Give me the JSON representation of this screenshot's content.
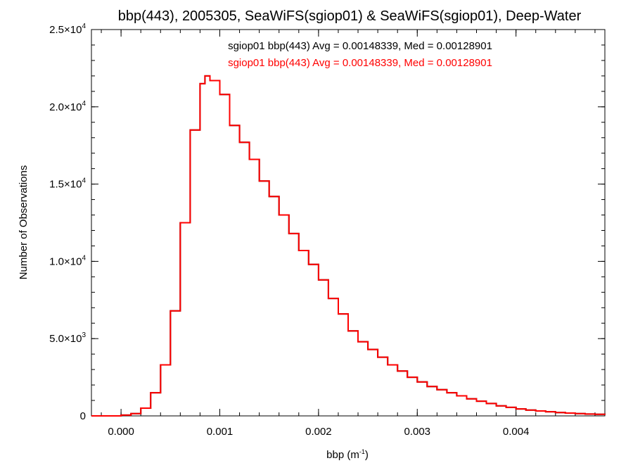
{
  "chart_data": {
    "type": "line",
    "title": "bbp(443), 2005305, SeaWiFS(sgiop01) & SeaWiFS(sgiop01), Deep-Water",
    "xlabel": {
      "base": "bbp (m",
      "sup": "-1",
      "tail": ")"
    },
    "ylabel": "Number of Observations",
    "xlim": [
      -0.0003,
      0.0049
    ],
    "ylim": [
      0,
      25000
    ],
    "x_ticks": [
      {
        "value": 0.0,
        "label": "0.000"
      },
      {
        "value": 0.001,
        "label": "0.001"
      },
      {
        "value": 0.002,
        "label": "0.002"
      },
      {
        "value": 0.003,
        "label": "0.003"
      },
      {
        "value": 0.004,
        "label": "0.004"
      }
    ],
    "y_ticks": [
      {
        "value": 0,
        "mant": "0",
        "exp": ""
      },
      {
        "value": 5000,
        "mant": "5.0×10",
        "exp": "3"
      },
      {
        "value": 10000,
        "mant": "1.0×10",
        "exp": "4"
      },
      {
        "value": 15000,
        "mant": "1.5×10",
        "exp": "4"
      },
      {
        "value": 20000,
        "mant": "2.0×10",
        "exp": "4"
      },
      {
        "value": 25000,
        "mant": "2.5×10",
        "exp": "4"
      }
    ],
    "x_minor_step": 0.0002,
    "y_minor_step": 1000,
    "grid": false,
    "step_plot": true,
    "series": [
      {
        "name": "sgiop01 bbp(443)",
        "color": "#000000",
        "annotation": "sgiop01 bbp(443) Avg = 0.00148339, Med = 0.00128901",
        "x": [
          -0.0003,
          0.0,
          0.0001,
          0.0002,
          0.0003,
          0.0004,
          0.0005,
          0.0006,
          0.0007,
          0.0008,
          0.00085,
          0.0009,
          0.001,
          0.0011,
          0.0012,
          0.0013,
          0.0014,
          0.0015,
          0.0016,
          0.0017,
          0.0018,
          0.0019,
          0.002,
          0.0021,
          0.0022,
          0.0023,
          0.0024,
          0.0025,
          0.0026,
          0.0027,
          0.0028,
          0.0029,
          0.003,
          0.0031,
          0.0032,
          0.0033,
          0.0034,
          0.0035,
          0.0036,
          0.0037,
          0.0038,
          0.0039,
          0.004,
          0.0041,
          0.0042,
          0.0043,
          0.0044,
          0.0045,
          0.0046,
          0.0047,
          0.0048,
          0.0049
        ],
        "y": [
          0,
          50,
          150,
          500,
          1500,
          3300,
          6800,
          12500,
          18500,
          21500,
          22000,
          21700,
          20800,
          18800,
          17700,
          16600,
          15200,
          14200,
          13000,
          11800,
          10700,
          9800,
          8800,
          7600,
          6600,
          5500,
          4800,
          4300,
          3800,
          3300,
          2900,
          2500,
          2200,
          1900,
          1700,
          1500,
          1300,
          1100,
          950,
          800,
          650,
          550,
          450,
          380,
          320,
          270,
          220,
          180,
          150,
          120,
          100,
          80
        ]
      },
      {
        "name": "sgiop01 bbp(443)",
        "color": "#ff0000",
        "annotation": "sgiop01 bbp(443) Avg = 0.00148339, Med = 0.00128901",
        "x": [
          -0.0003,
          0.0,
          0.0001,
          0.0002,
          0.0003,
          0.0004,
          0.0005,
          0.0006,
          0.0007,
          0.0008,
          0.00085,
          0.0009,
          0.001,
          0.0011,
          0.0012,
          0.0013,
          0.0014,
          0.0015,
          0.0016,
          0.0017,
          0.0018,
          0.0019,
          0.002,
          0.0021,
          0.0022,
          0.0023,
          0.0024,
          0.0025,
          0.0026,
          0.0027,
          0.0028,
          0.0029,
          0.003,
          0.0031,
          0.0032,
          0.0033,
          0.0034,
          0.0035,
          0.0036,
          0.0037,
          0.0038,
          0.0039,
          0.004,
          0.0041,
          0.0042,
          0.0043,
          0.0044,
          0.0045,
          0.0046,
          0.0047,
          0.0048,
          0.0049
        ],
        "y": [
          0,
          50,
          150,
          500,
          1500,
          3300,
          6800,
          12500,
          18500,
          21500,
          22000,
          21700,
          20800,
          18800,
          17700,
          16600,
          15200,
          14200,
          13000,
          11800,
          10700,
          9800,
          8800,
          7600,
          6600,
          5500,
          4800,
          4300,
          3800,
          3300,
          2900,
          2500,
          2200,
          1900,
          1700,
          1500,
          1300,
          1100,
          950,
          800,
          650,
          550,
          450,
          380,
          320,
          270,
          220,
          180,
          150,
          120,
          100,
          80
        ]
      }
    ]
  }
}
